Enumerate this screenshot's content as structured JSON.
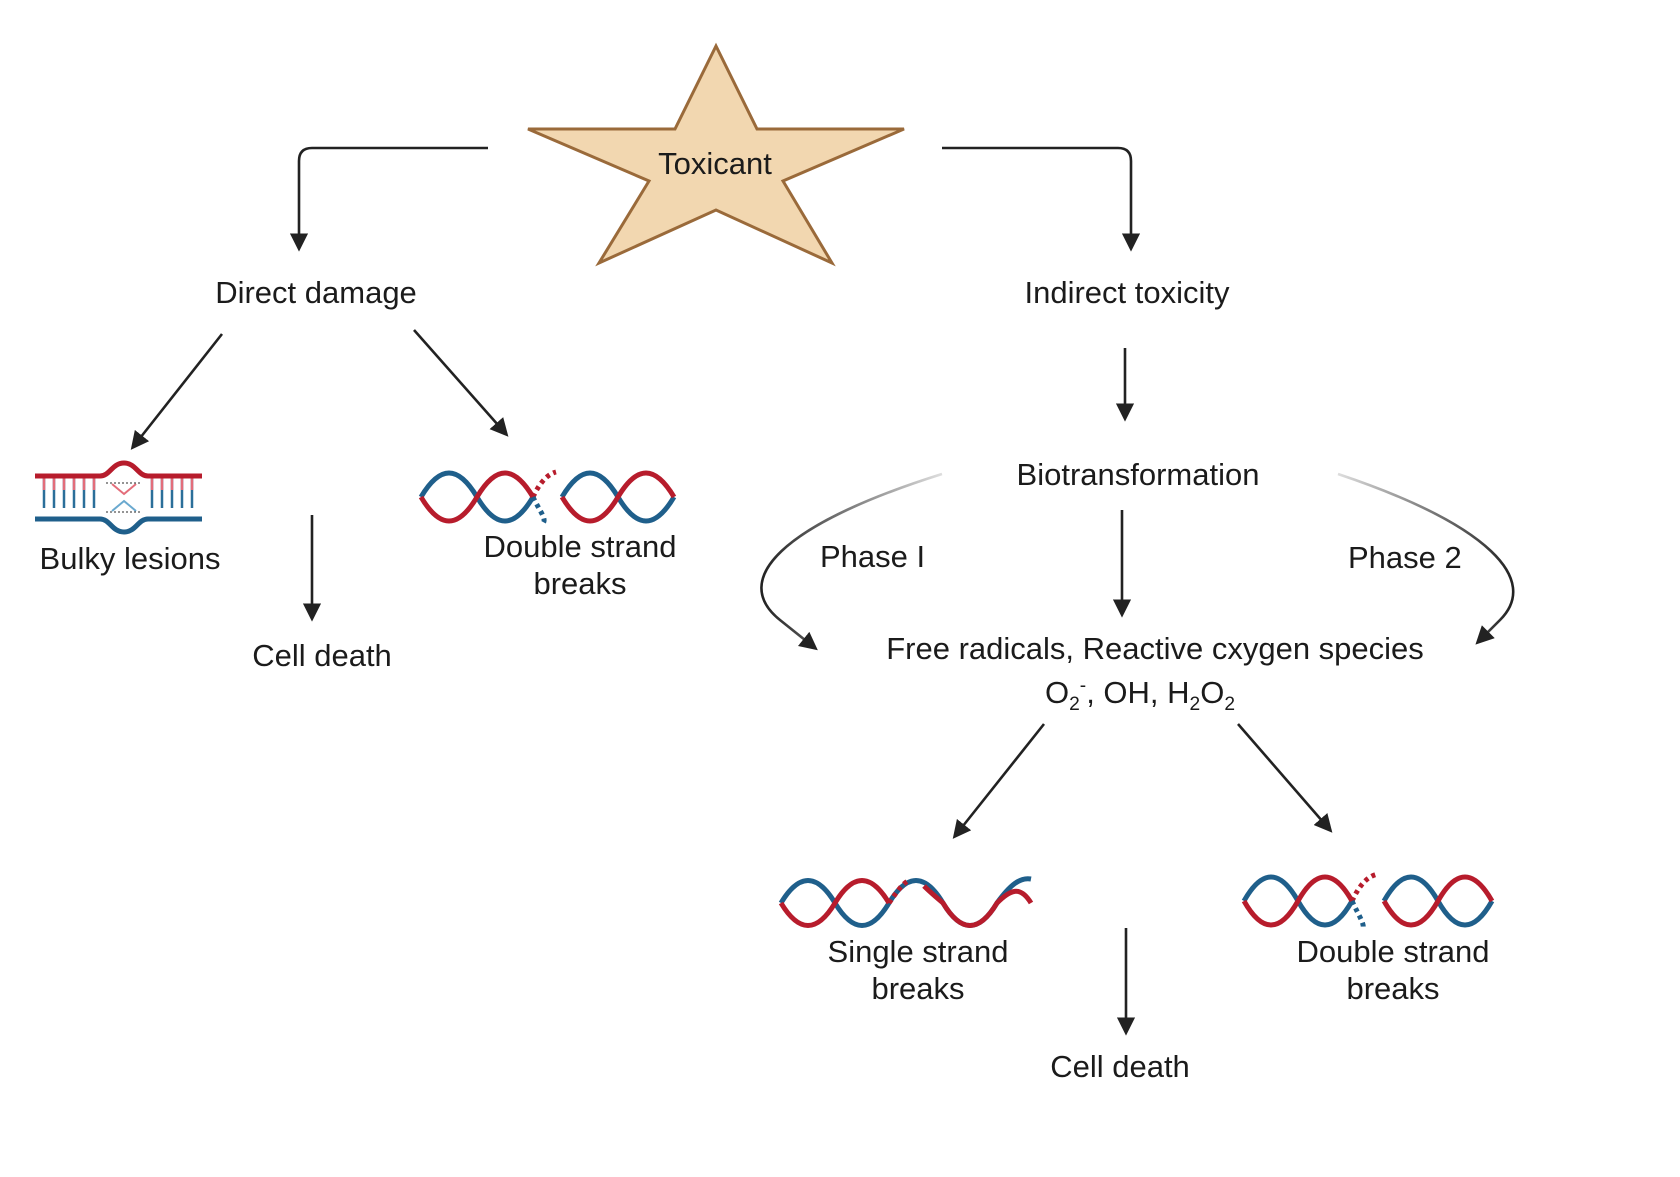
{
  "nodes": {
    "toxicant": "Toxicant",
    "direct_damage": "Direct damage",
    "indirect_toxicity": "Indirect toxicity",
    "bulky_lesions": "Bulky lesions",
    "double_strand_breaks_left": "Double strand breaks",
    "cell_death_left": "Cell death",
    "biotransformation": "Biotransformation",
    "phase_1": "Phase I",
    "phase_2": "Phase 2",
    "free_radicals": "Free radicals, Reactive cxygen species",
    "species": {
      "o2": "O",
      "o2_sub": "2",
      "o2_sup": "-",
      "oh": ", OH, H",
      "h2o2_sub1": "2",
      "h2o2_o": "O",
      "h2o2_sub2": "2"
    },
    "single_strand_breaks": "Single strand breaks",
    "double_strand_breaks_right": "Double strand breaks",
    "cell_death_right": "Cell death"
  },
  "icons": {
    "star": "star-icon",
    "bulky_lesion": "dna-bulky-lesion-icon",
    "double_strand_break": "dna-double-strand-break-icon",
    "single_strand_break": "dna-single-strand-break-icon"
  },
  "colors": {
    "star_fill": "#f2d7b0",
    "star_stroke": "#9a6a3a",
    "dna_red": "#b71c2c",
    "dna_blue": "#1f5f8b",
    "arrow": "#222222"
  }
}
